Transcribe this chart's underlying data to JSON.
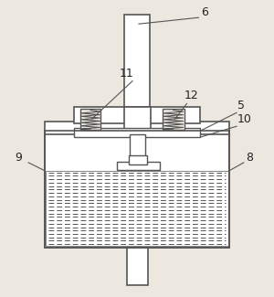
{
  "figsize": [
    3.0,
    3.25
  ],
  "dpi": 100,
  "bg_color": "#ede8df",
  "line_color": "#555555",
  "label_color": "#222222",
  "label_fontsize": 9
}
